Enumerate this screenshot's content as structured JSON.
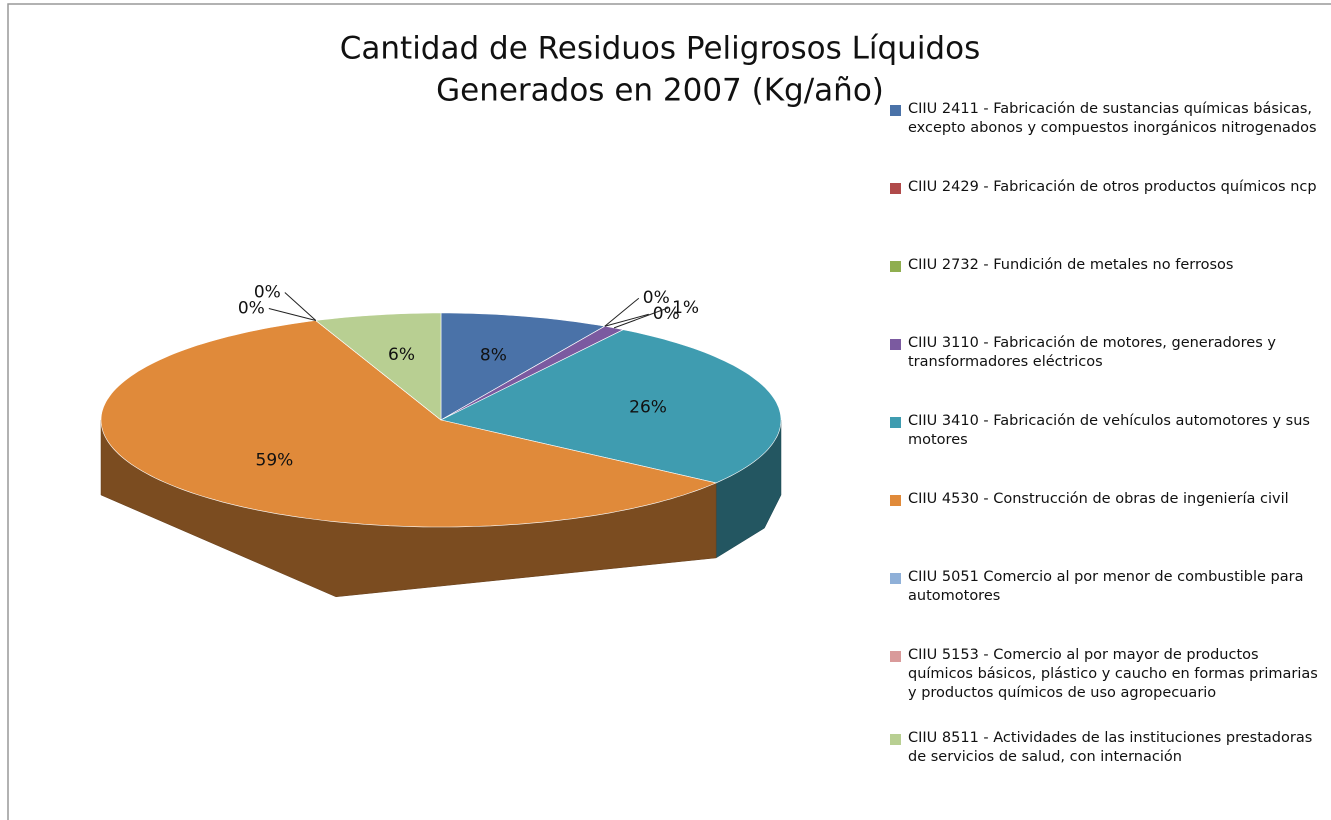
{
  "chart_data": {
    "type": "pie",
    "title": [
      "Cantidad de Residuos Peligrosos Líquidos",
      "Generados  en 2007 (Kg/año)"
    ],
    "categories": [
      "CIIU 2411 - Fabricación de sustancias químicas básicas, excepto abonos y compuestos inorgánicos nitrogenados",
      "CIIU 2429 - Fabricación de otros productos químicos ncp",
      "CIIU 2732 - Fundición de metales no ferrosos",
      "CIIU 3110 - Fabricación de motores, generadores y transformadores eléctricos",
      "CIIU 3410 - Fabricación de vehículos automotores y sus motores",
      "CIIU 4530 - Construcción de obras de ingeniería civil",
      "CIIU 5051   Comercio al por menor de combustible para automotores",
      "CIIU 5153 - Comercio al por mayor de productos químicos básicos, plástico y caucho en formas primarias y productos químicos de uso agropecuario",
      "CIIU 8511 - Actividades de las instituciones prestadoras de servicios de salud, con internación"
    ],
    "values": [
      8,
      0,
      0,
      1,
      26,
      59,
      0,
      0,
      6
    ],
    "value_labels": [
      "8%",
      "0%",
      "0%",
      "1%",
      "26%",
      "59%",
      "0%",
      "0%",
      "6%"
    ],
    "colors": [
      "#4a72a8",
      "#b04a4a",
      "#8fae4f",
      "#7b5aa0",
      "#3f9cb0",
      "#e08a3a",
      "#8fb0d8",
      "#d99a9a",
      "#b8cf92"
    ],
    "legend": "right"
  }
}
